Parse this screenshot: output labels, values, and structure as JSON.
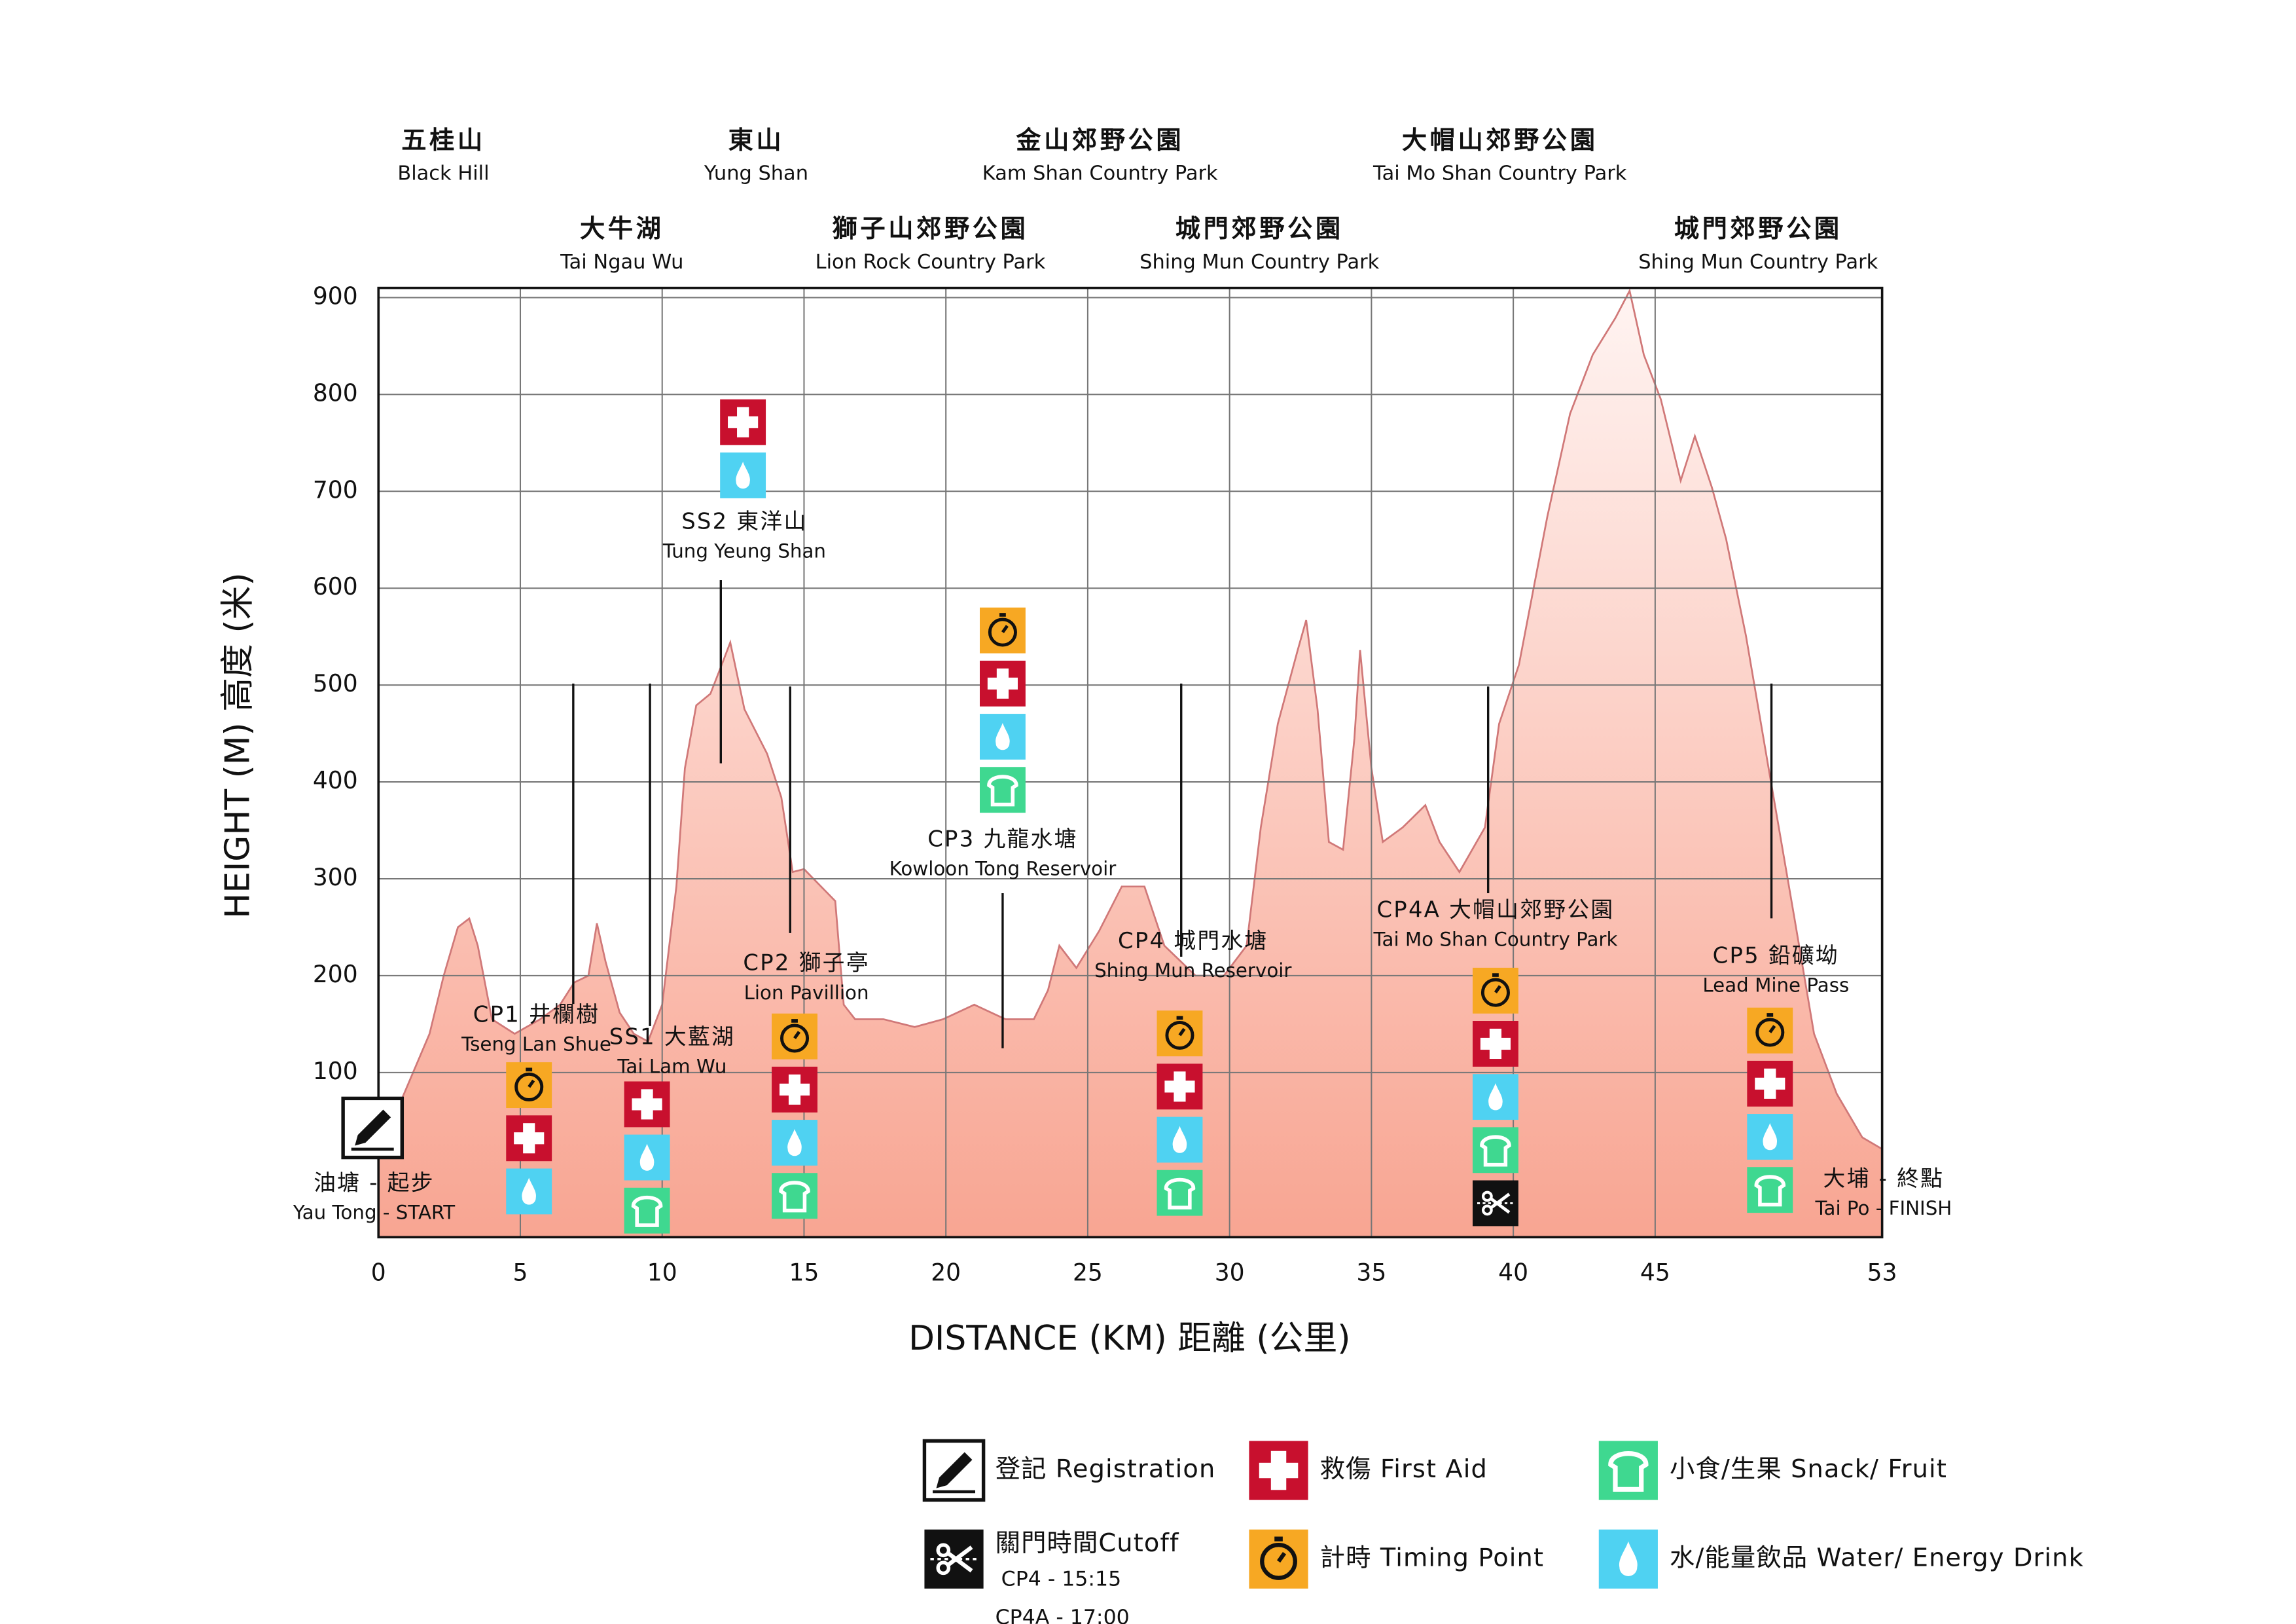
{
  "chart_data": {
    "type": "area",
    "x_label": "DISTANCE (KM)  距離 (公里)",
    "y_label": "HEIGHT (M)  高度 (米)",
    "x": [
      0,
      0.9,
      1.8,
      2.3,
      2.8,
      3.2,
      3.5,
      4.0,
      4.8,
      5.7,
      6.4,
      6.9,
      7.4,
      7.7,
      8.0,
      8.5,
      9.0,
      9.5,
      10.0,
      10.5,
      10.8,
      11.2,
      11.7,
      12.1,
      12.4,
      12.9,
      13.7,
      14.2,
      14.6,
      15.0,
      15.6,
      16.1,
      16.4,
      16.8,
      17.8,
      18.9,
      19.9,
      21.0,
      22.1,
      23.1,
      23.6,
      24.0,
      24.6,
      25.4,
      26.2,
      27.0,
      27.7,
      28.8,
      29.8,
      30.6,
      31.1,
      31.7,
      32.4,
      32.7,
      33.1,
      33.5,
      34.0,
      34.4,
      34.6,
      35.0,
      35.4,
      36.1,
      36.9,
      37.4,
      38.1,
      39.0,
      39.5,
      40.2,
      41.2,
      42.0,
      42.8,
      43.6,
      44.1,
      44.6,
      45.2,
      45.9,
      46.4,
      47.0,
      47.5,
      48.2,
      49.0,
      49.9,
      50.6,
      51.4,
      52.3,
      53.0
    ],
    "values": [
      17,
      78,
      140,
      200,
      250,
      259,
      231,
      155,
      140,
      155,
      170,
      193,
      200,
      254,
      215,
      162,
      140,
      132,
      170,
      292,
      414,
      479,
      491,
      521,
      544,
      475,
      429,
      384,
      307,
      310,
      292,
      277,
      170,
      155,
      155,
      147,
      155,
      170,
      155,
      155,
      185,
      231,
      208,
      246,
      292,
      292,
      231,
      200,
      200,
      231,
      353,
      460,
      536,
      567,
      475,
      338,
      330,
      445,
      536,
      414,
      338,
      353,
      376,
      338,
      307,
      353,
      460,
      521,
      674,
      780,
      841,
      879,
      907,
      841,
      795,
      711,
      757,
      704,
      651,
      551,
      414,
      261,
      140,
      78,
      33,
      21
    ],
    "color": "#f8a592",
    "line_color": "#d07878",
    "xlim": [
      0,
      53
    ],
    "ylim": [
      -70,
      910
    ],
    "xticks": [
      0,
      5,
      10,
      15,
      20,
      25,
      30,
      35,
      40,
      45,
      53
    ],
    "yticks": [
      100,
      200,
      300,
      400,
      500,
      600,
      700,
      800,
      900
    ],
    "grid": true
  },
  "parks": [
    {
      "name": "五桂山",
      "english": "Black Hill"
    },
    {
      "name": "東山",
      "english": "Yung Shan"
    },
    {
      "name": "金山郊野公園",
      "english": "Kam Shan Country Park"
    },
    {
      "name": "大帽山郊野公園",
      "english": "Tai Mo Shan Country Park"
    },
    {
      "name": "大牛湖",
      "english": "Tai Ngau Wu"
    },
    {
      "name": "獅子山郊野公園",
      "english": "Lion Rock Country Park"
    },
    {
      "name": "城門郊野公園",
      "english": "Shing Mun Country Park"
    },
    {
      "name": "城門郊野公園",
      "english": "Shing Mun Country Park"
    }
  ],
  "checkpoints": [
    {
      "name": "CP1 井欄樹",
      "english": "Tseng Lan Shue"
    },
    {
      "name": "SS1 大藍湖",
      "english": "Tai Lam Wu"
    },
    {
      "name": "CP2 獅子亭",
      "english": "Lion Pavillion"
    },
    {
      "name": "SS2 東洋山",
      "english": "Tung Yeung Shan"
    },
    {
      "name": "CP3 九龍水塘",
      "english": "Kowloon Tong Reservoir"
    },
    {
      "name": "CP4 城門水塘",
      "english": "Shing Mun Reservoir"
    },
    {
      "name": "CP4A 大帽山郊野公園",
      "english": "Tai Mo Shan Country Park"
    },
    {
      "name": "CP5 鉛礦坳",
      "english": "Lead Mine Pass"
    }
  ],
  "start": {
    "name": "油塘 - 起步",
    "english": "Yau Tong - START"
  },
  "finish": {
    "name": "大埔 - 終點",
    "english": "Tai Po - FINISH"
  },
  "legend": {
    "registration": "登記 Registration",
    "first_aid": "救傷 First Aid",
    "snack": "小食/生果 Snack/ Fruit",
    "cutoff": "關門時間Cutoff",
    "timing": "計時 Timing Point",
    "water": "水/能量飲品 Water/ Energy Drink",
    "cutoff_times": [
      "CP4 - 15:15",
      "CP4A - 17:00"
    ]
  }
}
